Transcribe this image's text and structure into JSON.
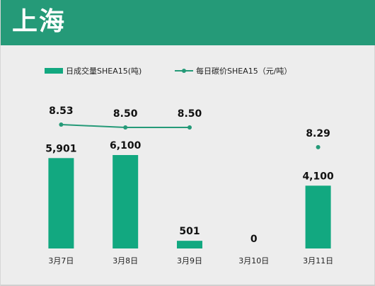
{
  "header": {
    "title": "上海"
  },
  "chart_data": {
    "type": "bar",
    "categories": [
      "3月7日",
      "3月8日",
      "3月9日",
      "3月10日",
      "3月11日"
    ],
    "series": [
      {
        "name": "日成交量SHEA15(吨)",
        "type": "bar",
        "values": [
          5901,
          6100,
          501,
          0,
          4100
        ],
        "labels": [
          "5,901",
          "6,100",
          "501",
          "0",
          "4,100"
        ]
      },
      {
        "name": "每日碳价SHEA15（元/吨）",
        "type": "line",
        "values": [
          8.53,
          8.5,
          8.5,
          null,
          8.29
        ],
        "labels": [
          "8.53",
          "8.50",
          "8.50",
          "",
          "8.29"
        ]
      }
    ],
    "colors": {
      "bar": "#12a880",
      "line": "#259a78",
      "header": "#259a78"
    },
    "legend_placement": "top-left",
    "grid": false
  }
}
